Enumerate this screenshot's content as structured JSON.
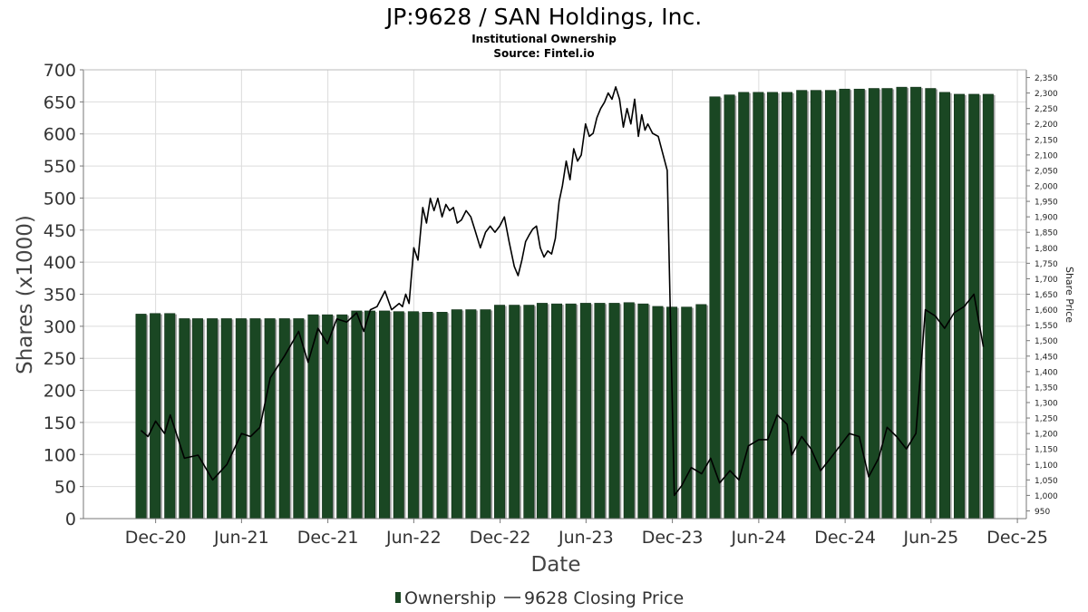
{
  "title": "JP:9628 / SAN Holdings, Inc.",
  "subtitle1": "Institutional Ownership",
  "subtitle2": "Source: Fintel.io",
  "colors": {
    "bar": "#1a4723",
    "bar_shadow": "#a5a5a5",
    "line": "#000000",
    "grid": "#dcdcdc"
  },
  "chart_data": {
    "type": "bar",
    "xlabel": "Date",
    "ylabel": "Shares (x1000)",
    "y2label": "Share Price",
    "ylim": [
      0,
      700
    ],
    "y2lim": [
      925,
      2375
    ],
    "yticks": [
      0,
      50,
      100,
      150,
      200,
      250,
      300,
      350,
      400,
      450,
      500,
      550,
      600,
      650,
      700
    ],
    "y2ticks": [
      950,
      1000,
      1050,
      1100,
      1150,
      1200,
      1250,
      1300,
      1350,
      1400,
      1450,
      1500,
      1550,
      1600,
      1650,
      1700,
      1750,
      1800,
      1850,
      1900,
      1950,
      2000,
      2050,
      2100,
      2150,
      2200,
      2250,
      2300,
      2350
    ],
    "y2ticklabels": [
      "950",
      "1,000",
      "1,050",
      "1,100",
      "1,150",
      "1,200",
      "1,250",
      "1,300",
      "1,350",
      "1,400",
      "1,450",
      "1,500",
      "1,550",
      "1,600",
      "1,650",
      "1,700",
      "1,750",
      "1,800",
      "1,850",
      "1,900",
      "1,950",
      "2,000",
      "2,050",
      "2,100",
      "2,150",
      "2,200",
      "2,250",
      "2,300",
      "2,350"
    ],
    "xlim": [
      "2020-07-01",
      "2025-12-20"
    ],
    "xticks": [
      "2020-12-01",
      "2021-06-01",
      "2021-12-01",
      "2022-06-01",
      "2022-12-01",
      "2023-06-01",
      "2023-12-01",
      "2024-06-01",
      "2024-12-01",
      "2025-06-01",
      "2025-12-01"
    ],
    "xticklabels": [
      "Dec-20",
      "Jun-21",
      "Dec-21",
      "Jun-22",
      "Dec-22",
      "Jun-23",
      "Dec-23",
      "Jun-24",
      "Dec-24",
      "Jun-25",
      "Dec-25"
    ],
    "legend": [
      {
        "label": "Ownership",
        "kind": "bar"
      },
      {
        "label": "9628 Closing Price",
        "kind": "line"
      }
    ],
    "series": [
      {
        "name": "Ownership",
        "kind": "bar",
        "x": [
          "2020-10-31",
          "2020-11-30",
          "2020-12-31",
          "2021-01-31",
          "2021-02-28",
          "2021-03-31",
          "2021-04-30",
          "2021-05-31",
          "2021-06-30",
          "2021-07-31",
          "2021-08-31",
          "2021-09-30",
          "2021-10-31",
          "2021-11-30",
          "2021-12-31",
          "2022-01-31",
          "2022-02-28",
          "2022-03-31",
          "2022-04-30",
          "2022-05-31",
          "2022-06-30",
          "2022-07-31",
          "2022-08-31",
          "2022-09-30",
          "2022-10-31",
          "2022-11-30",
          "2022-12-31",
          "2023-01-31",
          "2023-02-28",
          "2023-03-31",
          "2023-04-30",
          "2023-05-31",
          "2023-06-30",
          "2023-07-31",
          "2023-08-31",
          "2023-09-30",
          "2023-10-31",
          "2023-11-30",
          "2023-12-31",
          "2024-01-31",
          "2024-02-29",
          "2024-03-31",
          "2024-04-30",
          "2024-05-31",
          "2024-06-30",
          "2024-07-31",
          "2024-08-31",
          "2024-09-30",
          "2024-10-31",
          "2024-11-30",
          "2024-12-31",
          "2025-01-31",
          "2025-02-28",
          "2025-03-31",
          "2025-04-30",
          "2025-05-31",
          "2025-06-30",
          "2025-07-31",
          "2025-08-31",
          "2025-09-30"
        ],
        "values": [
          319,
          320,
          320,
          312,
          312,
          312,
          312,
          312,
          312,
          312,
          312,
          312,
          318,
          318,
          318,
          324,
          324,
          324,
          323,
          323,
          322,
          322,
          326,
          326,
          326,
          333,
          333,
          333,
          336,
          335,
          335,
          336,
          336,
          336,
          337,
          335,
          331,
          330,
          330,
          334,
          658,
          661,
          665,
          665,
          665,
          665,
          668,
          668,
          668,
          670,
          670,
          671,
          671,
          673,
          673,
          671,
          665,
          662,
          662,
          662
        ]
      },
      {
        "name": "9628 Closing Price",
        "kind": "line",
        "x": [
          "2020-10-31",
          "2020-11-15",
          "2020-12-01",
          "2020-12-20",
          "2021-01-01",
          "2021-01-31",
          "2021-03-01",
          "2021-04-01",
          "2021-05-01",
          "2021-06-01",
          "2021-06-20",
          "2021-07-10",
          "2021-08-01",
          "2021-08-31",
          "2021-09-30",
          "2021-10-20",
          "2021-11-10",
          "2021-11-30",
          "2021-12-20",
          "2022-01-10",
          "2022-01-31",
          "2022-02-15",
          "2022-03-01",
          "2022-03-15",
          "2022-04-01",
          "2022-04-15",
          "2022-05-01",
          "2022-05-08",
          "2022-05-15",
          "2022-05-22",
          "2022-06-01",
          "2022-06-10",
          "2022-06-20",
          "2022-06-28",
          "2022-07-06",
          "2022-07-14",
          "2022-07-22",
          "2022-07-31",
          "2022-08-08",
          "2022-08-16",
          "2022-08-24",
          "2022-09-01",
          "2022-09-10",
          "2022-09-20",
          "2022-09-30",
          "2022-10-10",
          "2022-10-20",
          "2022-10-31",
          "2022-11-10",
          "2022-11-20",
          "2022-11-30",
          "2022-12-10",
          "2022-12-20",
          "2022-12-31",
          "2023-01-08",
          "2023-01-16",
          "2023-01-24",
          "2023-01-31",
          "2023-02-08",
          "2023-02-16",
          "2023-02-24",
          "2023-03-04",
          "2023-03-12",
          "2023-03-20",
          "2023-03-28",
          "2023-04-05",
          "2023-04-12",
          "2023-04-20",
          "2023-04-28",
          "2023-05-06",
          "2023-05-14",
          "2023-05-22",
          "2023-05-31",
          "2023-06-08",
          "2023-06-16",
          "2023-06-24",
          "2023-07-02",
          "2023-07-10",
          "2023-07-18",
          "2023-07-26",
          "2023-08-03",
          "2023-08-11",
          "2023-08-19",
          "2023-08-27",
          "2023-09-04",
          "2023-09-12",
          "2023-09-20",
          "2023-09-27",
          "2023-10-04",
          "2023-10-10",
          "2023-10-20",
          "2023-11-01",
          "2023-11-20",
          "2023-12-05",
          "2023-12-20",
          "2024-01-10",
          "2024-02-01",
          "2024-02-20",
          "2024-03-10",
          "2024-04-01",
          "2024-04-20",
          "2024-05-10",
          "2024-06-01",
          "2024-06-20",
          "2024-07-10",
          "2024-07-31",
          "2024-08-10",
          "2024-08-31",
          "2024-09-20",
          "2024-10-10",
          "2024-10-31",
          "2024-11-20",
          "2024-12-10",
          "2024-12-31",
          "2025-01-20",
          "2025-02-10",
          "2025-02-28",
          "2025-03-20",
          "2025-04-10",
          "2025-04-30",
          "2025-05-20",
          "2025-06-10",
          "2025-06-30",
          "2025-07-20",
          "2025-08-10",
          "2025-08-31",
          "2025-09-20"
        ],
        "values": [
          1210,
          1190,
          1240,
          1200,
          1260,
          1120,
          1130,
          1050,
          1100,
          1200,
          1190,
          1220,
          1380,
          1450,
          1530,
          1430,
          1540,
          1490,
          1570,
          1560,
          1590,
          1530,
          1600,
          1610,
          1660,
          1600,
          1620,
          1610,
          1650,
          1620,
          1800,
          1760,
          1930,
          1880,
          1960,
          1920,
          1960,
          1900,
          1940,
          1920,
          1930,
          1880,
          1890,
          1920,
          1900,
          1850,
          1800,
          1850,
          1870,
          1850,
          1870,
          1900,
          1820,
          1740,
          1710,
          1760,
          1820,
          1840,
          1860,
          1870,
          1800,
          1770,
          1790,
          1780,
          1830,
          1950,
          2000,
          2080,
          2020,
          2120,
          2080,
          2100,
          2200,
          2160,
          2170,
          2220,
          2250,
          2270,
          2300,
          2280,
          2320,
          2280,
          2190,
          2250,
          2200,
          2280,
          2160,
          2230,
          2180,
          2200,
          2170,
          2160,
          2050,
          1000,
          1030,
          1090,
          1070,
          1120,
          1040,
          1080,
          1050,
          1160,
          1180,
          1180,
          1260,
          1230,
          1130,
          1190,
          1150,
          1080,
          1120,
          1160,
          1200,
          1190,
          1060,
          1120,
          1220,
          1190,
          1150,
          1200,
          1600,
          1580,
          1540,
          1590,
          1610,
          1650,
          1480
        ]
      }
    ]
  }
}
